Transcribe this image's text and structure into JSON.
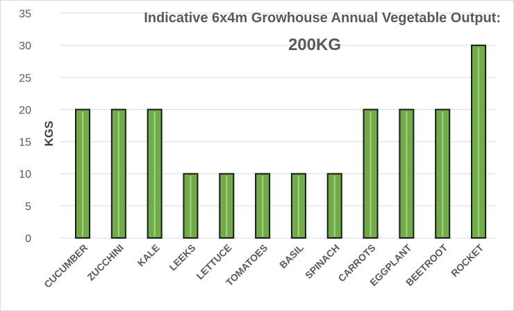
{
  "chart_data": {
    "type": "bar",
    "title": "Indicative 6x4m Growhouse Annual Vegetable Output:",
    "subtitle": "200KG",
    "xlabel": "",
    "ylabel": "KGS",
    "categories": [
      "CUCUMBER",
      "ZUCCHINI",
      "KALE",
      "LEEKS",
      "LETTUCE",
      "TOMATOES",
      "BASIL",
      "SPINACH",
      "CARROTS",
      "EGGPLANT",
      "BEETROOT",
      "ROCKET"
    ],
    "values": [
      20,
      20,
      20,
      10,
      10,
      10,
      10,
      10,
      20,
      20,
      20,
      30
    ],
    "ylim": [
      0,
      35
    ],
    "yticks": [
      "0",
      "5",
      "10",
      "15",
      "20",
      "25",
      "30",
      "35"
    ],
    "grid": true,
    "legend": "none",
    "colors": {
      "bar_fill": "#70ad47",
      "bar_highlight": "#a9d18e",
      "bar_outline": "#1a1a1a",
      "grid": "#d9d9d9",
      "text": "#595959"
    }
  }
}
